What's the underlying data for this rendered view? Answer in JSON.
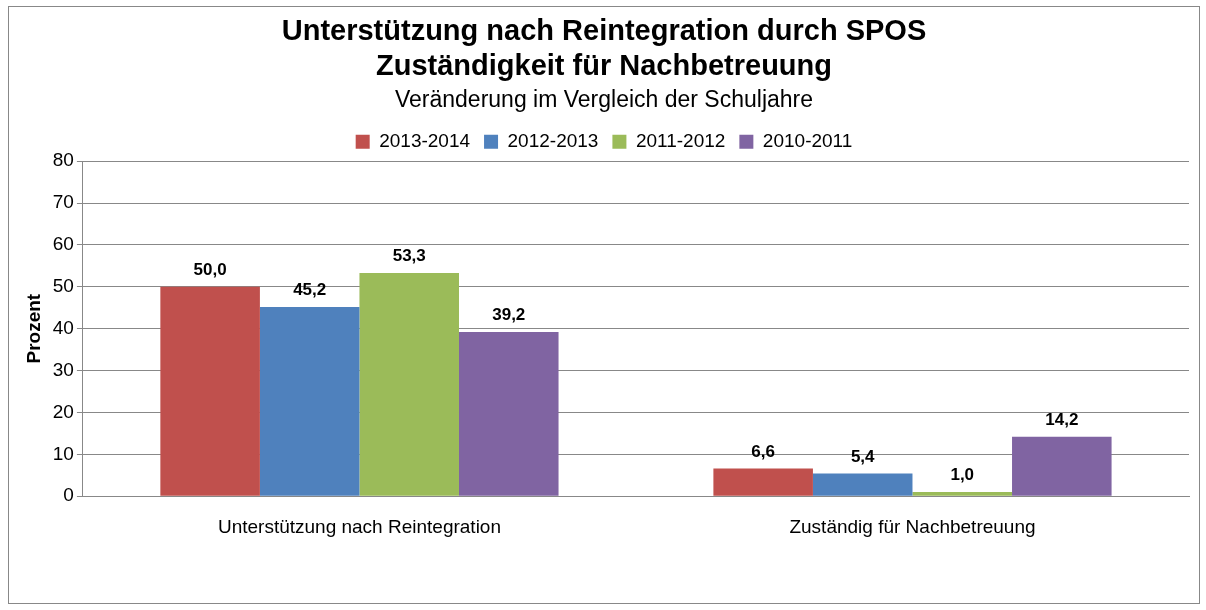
{
  "chart_data": {
    "type": "bar",
    "title": "Unterstützung nach Reintegration durch SPOS\nZuständigkeit für Nachbetreuung",
    "subtitle": "Veränderung im Vergleich der Schuljahre",
    "ylabel": "Prozent",
    "categories": [
      "Unterstützung nach Reintegration",
      "Zuständig für Nachbetreuung"
    ],
    "series": [
      {
        "name": "2013-2014",
        "color": "#c0504d",
        "values": [
          50.0,
          6.6
        ],
        "value_labels": [
          "50,0",
          "6,6"
        ]
      },
      {
        "name": "2012-2013",
        "color": "#4f81bd",
        "values": [
          45.2,
          5.4
        ],
        "value_labels": [
          "45,2",
          "5,4"
        ]
      },
      {
        "name": "2011-2012",
        "color": "#9bbb59",
        "values": [
          53.3,
          1.0
        ],
        "value_labels": [
          "53,3",
          "1,0"
        ]
      },
      {
        "name": "2010-2011",
        "color": "#8064a2",
        "values": [
          39.2,
          14.2
        ],
        "value_labels": [
          "39,2",
          "14,2"
        ]
      }
    ],
    "ylim": [
      0,
      80
    ],
    "yticks": [
      0,
      10,
      20,
      30,
      40,
      50,
      60,
      70,
      80
    ],
    "grid": "y",
    "legend": "top"
  }
}
